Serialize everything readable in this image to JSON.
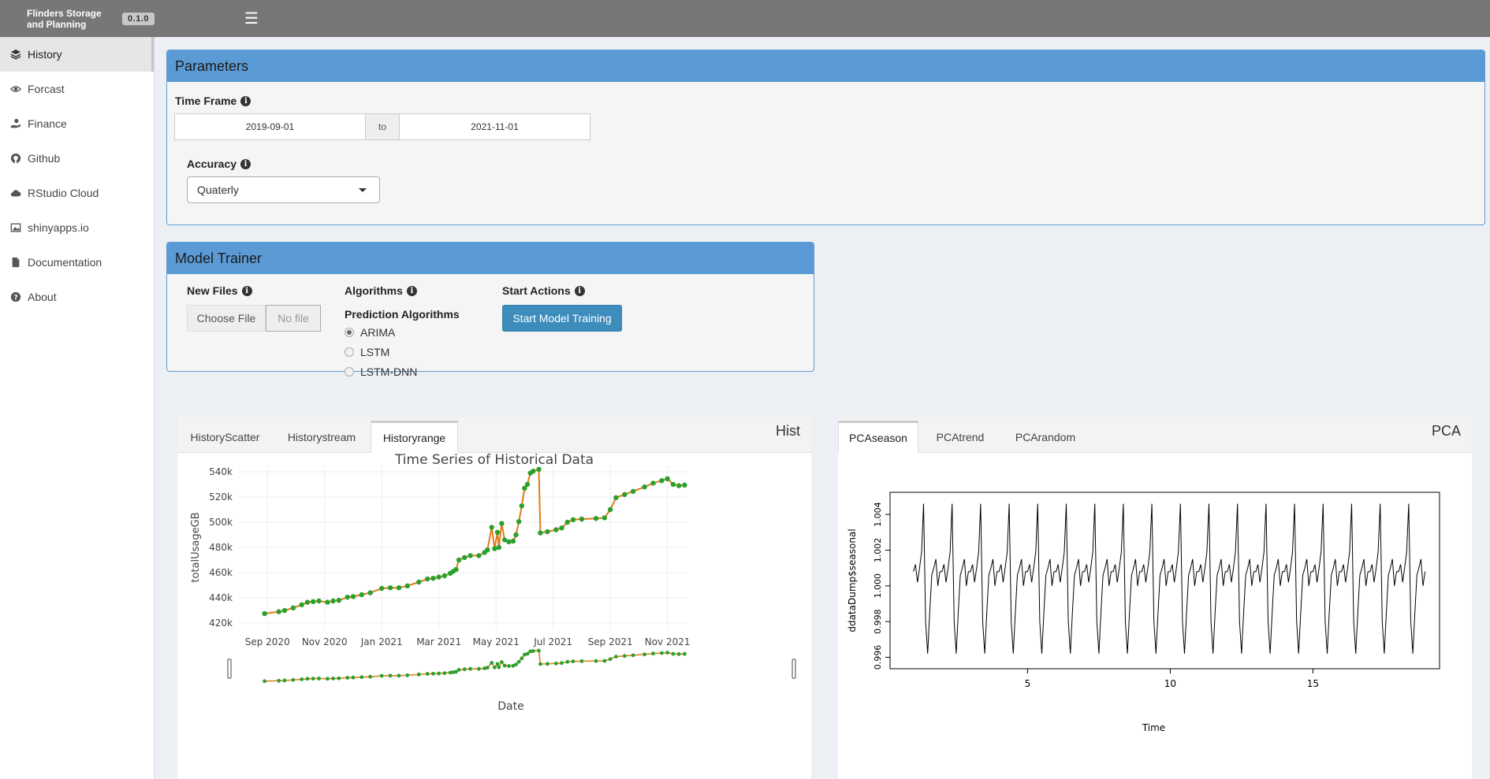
{
  "header": {
    "app_title": "Flinders Storage and Planning",
    "version": "0.1.0"
  },
  "sidebar": {
    "items": [
      {
        "label": "History",
        "icon": "layers-icon"
      },
      {
        "label": "Forcast",
        "icon": "eye-icon"
      },
      {
        "label": "Finance",
        "icon": "hand-coin-icon"
      },
      {
        "label": "Github",
        "icon": "github-icon"
      },
      {
        "label": "RStudio Cloud",
        "icon": "cloud-icon"
      },
      {
        "label": "shinyapps.io",
        "icon": "image-icon"
      },
      {
        "label": "Documentation",
        "icon": "file-icon"
      },
      {
        "label": "About",
        "icon": "question-icon"
      }
    ]
  },
  "parameters": {
    "title": "Parameters",
    "time_frame_label": "Time Frame",
    "start_date": "2019-09-01",
    "to_label": "to",
    "end_date": "2021-11-01",
    "accuracy_label": "Accuracy",
    "accuracy_value": "Quaterly"
  },
  "model_trainer": {
    "title": "Model Trainer",
    "new_files_label": "New Files",
    "choose_file_label": "Choose File",
    "no_file_label": "No file",
    "algorithms_label": "Algorithms",
    "prediction_label": "Prediction Algorithms",
    "options": [
      "ARIMA",
      "LSTM",
      "LSTM-DNN"
    ],
    "selected": "ARIMA",
    "start_actions_label": "Start Actions",
    "start_button": "Start Model Training"
  },
  "hist_panel": {
    "title": "Hist",
    "tabs": [
      "HistoryScatter",
      "Historystream",
      "Historyrange"
    ],
    "active_tab": "Historyrange"
  },
  "pca_panel": {
    "title": "PCA",
    "tabs": [
      "PCAseason",
      "PCAtrend",
      "PCArandom"
    ],
    "active_tab": "PCAseason"
  },
  "chart_data": [
    {
      "type": "line",
      "title": "Time Series of Historical Data",
      "xlabel": "Date",
      "ylabel": "totalUsageGB",
      "x_tick_labels": [
        "Sep 2020",
        "Nov 2020",
        "Jan 2021",
        "Mar 2021",
        "May 2021",
        "Jul 2021",
        "Sep 2021",
        "Nov 2021"
      ],
      "y_tick_labels": [
        "420k",
        "440k",
        "460k",
        "480k",
        "500k",
        "520k",
        "540k"
      ],
      "ylim": [
        415000,
        545000
      ],
      "xlim_months": [
        7.0,
        22.7
      ],
      "line_color": "#e07b1a",
      "marker_color": "#2ca02c",
      "range_slider": true,
      "points_month_value": [
        [
          7.9,
          427500
        ],
        [
          8.4,
          429000
        ],
        [
          8.6,
          430000
        ],
        [
          8.9,
          432000
        ],
        [
          9.2,
          434500
        ],
        [
          9.4,
          436500
        ],
        [
          9.6,
          437000
        ],
        [
          9.8,
          437500
        ],
        [
          10.1,
          436500
        ],
        [
          10.3,
          437500
        ],
        [
          10.5,
          438000
        ],
        [
          10.8,
          440500
        ],
        [
          11.0,
          441000
        ],
        [
          11.3,
          442500
        ],
        [
          11.6,
          444000
        ],
        [
          12.0,
          447500
        ],
        [
          12.3,
          448000
        ],
        [
          12.6,
          448000
        ],
        [
          12.9,
          449500
        ],
        [
          13.3,
          452500
        ],
        [
          13.6,
          455000
        ],
        [
          13.8,
          455500
        ],
        [
          14.0,
          456500
        ],
        [
          14.2,
          457500
        ],
        [
          14.4,
          459500
        ],
        [
          14.5,
          461000
        ],
        [
          14.6,
          462500
        ],
        [
          14.7,
          470000
        ],
        [
          14.9,
          472000
        ],
        [
          15.1,
          473500
        ],
        [
          15.4,
          473500
        ],
        [
          15.6,
          476000
        ],
        [
          15.7,
          478000
        ],
        [
          15.85,
          496000
        ],
        [
          15.95,
          479000
        ],
        [
          16.05,
          492000
        ],
        [
          16.1,
          480000
        ],
        [
          16.2,
          499000
        ],
        [
          16.3,
          486000
        ],
        [
          16.45,
          484500
        ],
        [
          16.6,
          485000
        ],
        [
          16.7,
          490000
        ],
        [
          16.8,
          500500
        ],
        [
          16.9,
          513000
        ],
        [
          17.0,
          527000
        ],
        [
          17.1,
          530000
        ],
        [
          17.2,
          539000
        ],
        [
          17.3,
          540500
        ],
        [
          17.5,
          542000
        ],
        [
          17.55,
          491500
        ],
        [
          17.8,
          492500
        ],
        [
          18.1,
          494000
        ],
        [
          18.3,
          495500
        ],
        [
          18.5,
          500000
        ],
        [
          18.7,
          502000
        ],
        [
          19.0,
          502500
        ],
        [
          19.5,
          503000
        ],
        [
          19.8,
          503500
        ],
        [
          20.0,
          510000
        ],
        [
          20.2,
          519500
        ],
        [
          20.5,
          522000
        ],
        [
          20.8,
          524500
        ],
        [
          21.2,
          528000
        ],
        [
          21.5,
          531000
        ],
        [
          21.8,
          533000
        ],
        [
          22.0,
          534500
        ],
        [
          22.2,
          530000
        ],
        [
          22.4,
          529000
        ],
        [
          22.6,
          529500
        ]
      ]
    },
    {
      "type": "line",
      "title": "",
      "xlabel": "Time",
      "ylabel": "ddataDump$seasonal",
      "x_tick_labels": [
        "5",
        "10",
        "15"
      ],
      "y_tick_labels": [
        "0.996",
        "0.998",
        "1.000",
        "1.002",
        "1.004"
      ],
      "xlim": [
        1,
        19
      ],
      "ylim": [
        0.9958,
        1.0048
      ],
      "line_color": "#000000",
      "cycle_x_start": 1.0,
      "cycle_length": 1.0,
      "cycles": 18,
      "cycle_values": [
        1.0008,
        1.0012,
        1.0002,
        1.001,
        1.0019,
        1.0046,
        0.998,
        0.9962,
        0.9985,
        1.0006,
        1.001,
        1.0015,
        1.0,
        1.0008
      ]
    }
  ]
}
